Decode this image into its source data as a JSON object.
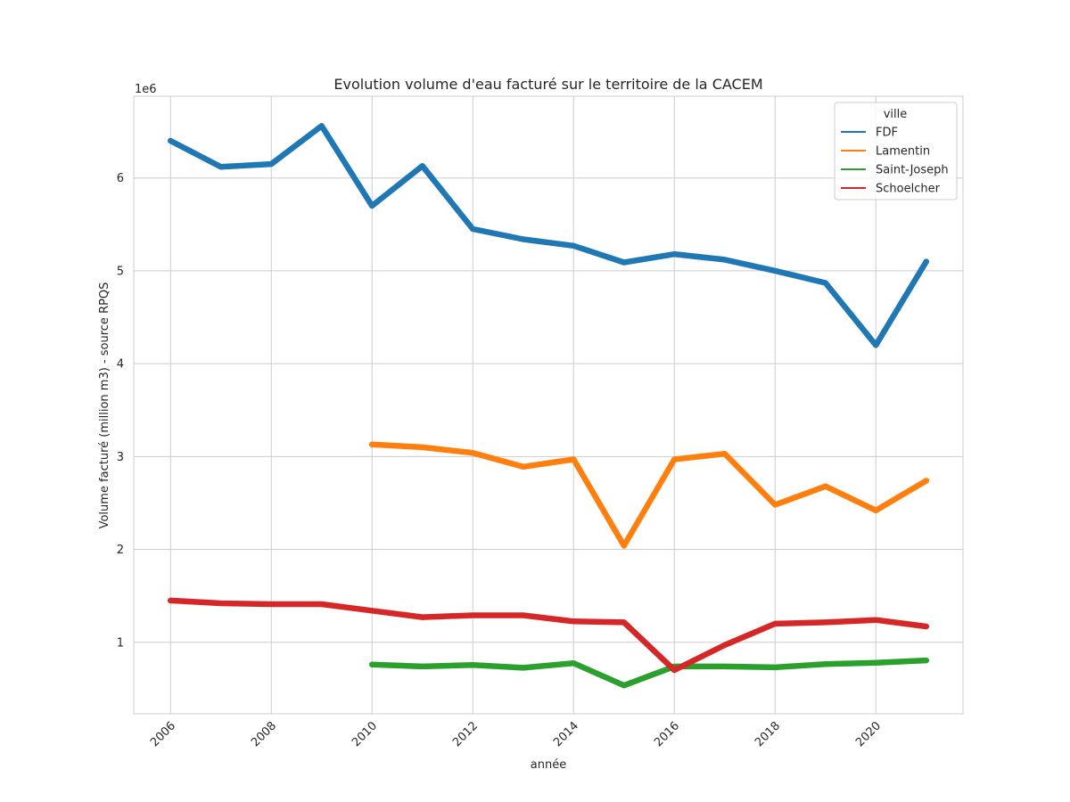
{
  "chart_data": {
    "type": "line",
    "title": "Evolution volume d'eau facturé sur le territoire de la CACEM",
    "xlabel": "année",
    "ylabel": "Volume facturé (million m3) - source RPQS",
    "y_offset_label": "1e6",
    "xlim": [
      2005.27,
      2021.73
    ],
    "ylim": [
      230000,
      6880000
    ],
    "x_ticks": [
      2006,
      2008,
      2010,
      2012,
      2014,
      2016,
      2018,
      2020
    ],
    "x_tick_labels": [
      "2006",
      "2008",
      "2010",
      "2012",
      "2014",
      "2016",
      "2018",
      "2020"
    ],
    "y_ticks": [
      1000000,
      2000000,
      3000000,
      4000000,
      5000000,
      6000000
    ],
    "y_tick_labels": [
      "1",
      "2",
      "3",
      "4",
      "5",
      "6"
    ],
    "grid": true,
    "legend": {
      "title": "ville",
      "placement": "top-right"
    },
    "series": [
      {
        "name": "FDF",
        "color": "#1f77b4",
        "x": [
          2006,
          2007,
          2008,
          2009,
          2010,
          2011,
          2012,
          2013,
          2014,
          2015,
          2016,
          2017,
          2018,
          2019,
          2020,
          2021
        ],
        "values": [
          6400000,
          6120000,
          6150000,
          6560000,
          5700000,
          6130000,
          5450000,
          5340000,
          5270000,
          5090000,
          5180000,
          5120000,
          5000000,
          4870000,
          4200000,
          5100000
        ]
      },
      {
        "name": "Lamentin",
        "color": "#ff7f0e",
        "x": [
          2010,
          2011,
          2012,
          2013,
          2014,
          2015,
          2016,
          2017,
          2018,
          2019,
          2020,
          2021
        ],
        "values": [
          3130000,
          3100000,
          3040000,
          2890000,
          2970000,
          2040000,
          2970000,
          3030000,
          2480000,
          2680000,
          2420000,
          2740000
        ]
      },
      {
        "name": "Saint-Joseph",
        "color": "#2ca02c",
        "x": [
          2010,
          2011,
          2012,
          2013,
          2014,
          2015,
          2016,
          2017,
          2018,
          2019,
          2020,
          2021
        ],
        "values": [
          760000,
          740000,
          755000,
          725000,
          775000,
          535000,
          740000,
          740000,
          730000,
          765000,
          780000,
          805000
        ]
      },
      {
        "name": "Schoelcher",
        "color": "#d62728",
        "x": [
          2006,
          2007,
          2008,
          2009,
          2010,
          2011,
          2012,
          2013,
          2014,
          2015,
          2016,
          2017,
          2018,
          2019,
          2020,
          2021
        ],
        "values": [
          1450000,
          1420000,
          1410000,
          1410000,
          1340000,
          1270000,
          1290000,
          1290000,
          1225000,
          1215000,
          700000,
          970000,
          1200000,
          1215000,
          1240000,
          1170000
        ]
      }
    ]
  }
}
